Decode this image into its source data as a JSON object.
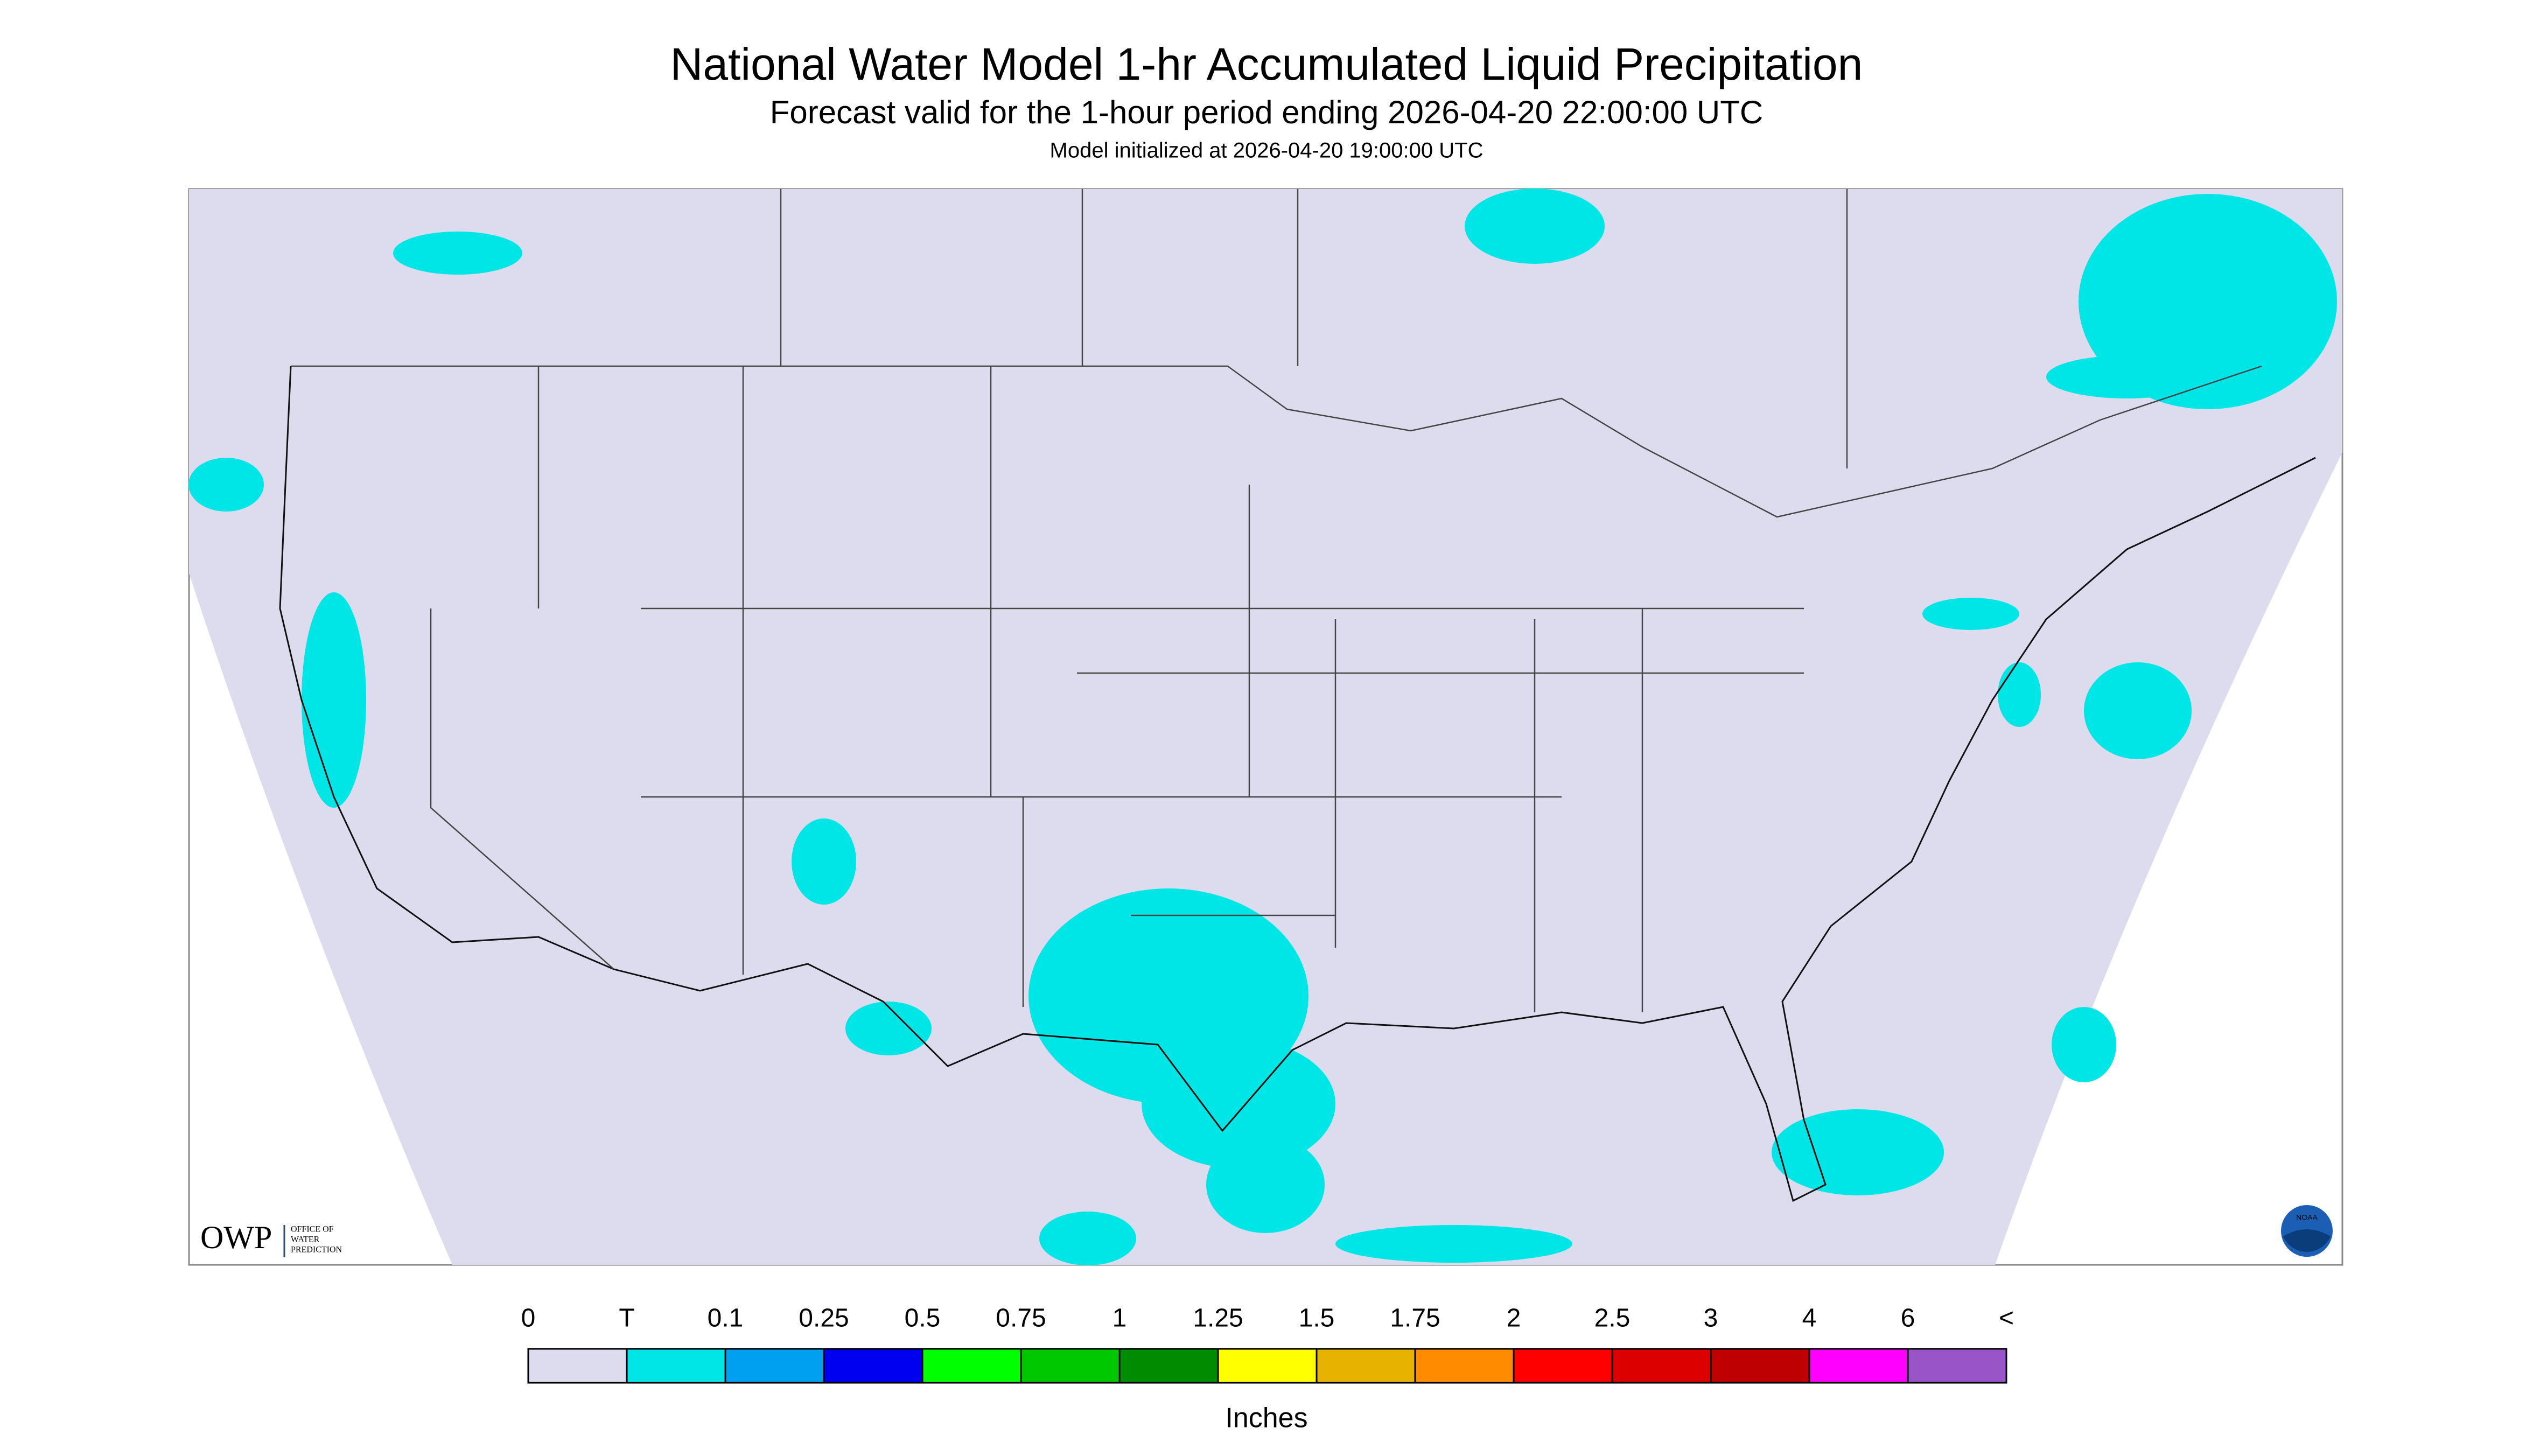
{
  "header": {
    "title": "National Water Model 1-hr Accumulated Liquid Precipitation",
    "subtitle": "Forecast valid for the 1-hour period ending 2026-04-20 22:00:00 UTC",
    "initialized": "Model initialized at 2026-04-20 19:00:00 UTC"
  },
  "legend": {
    "labels": [
      "0",
      "T",
      "0.1",
      "0.25",
      "0.5",
      "0.75",
      "1",
      "1.25",
      "1.5",
      "1.75",
      "2",
      "2.5",
      "3",
      "4",
      "6",
      "<"
    ],
    "colors": [
      "#dcdcee",
      "#00e6e6",
      "#00a0f0",
      "#0000f0",
      "#00ff00",
      "#00c800",
      "#008c00",
      "#ffff00",
      "#e6b400",
      "#ff8c00",
      "#ff0000",
      "#dc0000",
      "#be0000",
      "#ff00ff",
      "#9955c8"
    ],
    "units": "Inches"
  },
  "logos": {
    "owp": "OWP",
    "owp_text": [
      "OFFICE OF",
      "WATER",
      "PREDICTION"
    ],
    "noaa": "NOAA"
  }
}
